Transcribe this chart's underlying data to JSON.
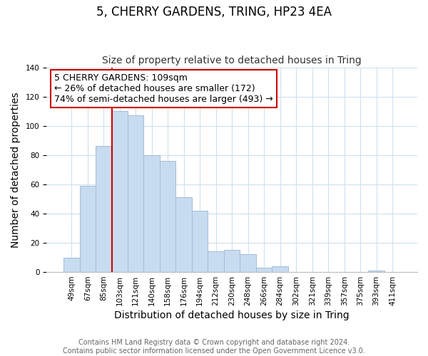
{
  "title": "5, CHERRY GARDENS, TRING, HP23 4EA",
  "subtitle": "Size of property relative to detached houses in Tring",
  "xlabel": "Distribution of detached houses by size in Tring",
  "ylabel": "Number of detached properties",
  "footer_line1": "Contains HM Land Registry data © Crown copyright and database right 2024.",
  "footer_line2": "Contains public sector information licensed under the Open Government Licence v3.0.",
  "bin_labels": [
    "49sqm",
    "67sqm",
    "85sqm",
    "103sqm",
    "121sqm",
    "140sqm",
    "158sqm",
    "176sqm",
    "194sqm",
    "212sqm",
    "230sqm",
    "248sqm",
    "266sqm",
    "284sqm",
    "302sqm",
    "321sqm",
    "339sqm",
    "357sqm",
    "375sqm",
    "393sqm",
    "411sqm"
  ],
  "bar_values": [
    10,
    59,
    86,
    110,
    107,
    80,
    76,
    51,
    42,
    14,
    15,
    12,
    3,
    4,
    0,
    0,
    0,
    0,
    0,
    1,
    0
  ],
  "bar_color": "#c8dcf0",
  "bar_edgecolor": "#a0bcd8",
  "vline_x_index": 3,
  "vline_color": "#cc0000",
  "ylim": [
    0,
    140
  ],
  "annotation_line1": "5 CHERRY GARDENS: 109sqm",
  "annotation_line2": "← 26% of detached houses are smaller (172)",
  "annotation_line3": "74% of semi-detached houses are larger (493) →",
  "background_color": "#ffffff",
  "grid_color": "#d0e0ec",
  "title_fontsize": 12,
  "subtitle_fontsize": 10,
  "axis_label_fontsize": 10,
  "tick_fontsize": 7.5,
  "annotation_fontsize": 9,
  "footer_fontsize": 7
}
